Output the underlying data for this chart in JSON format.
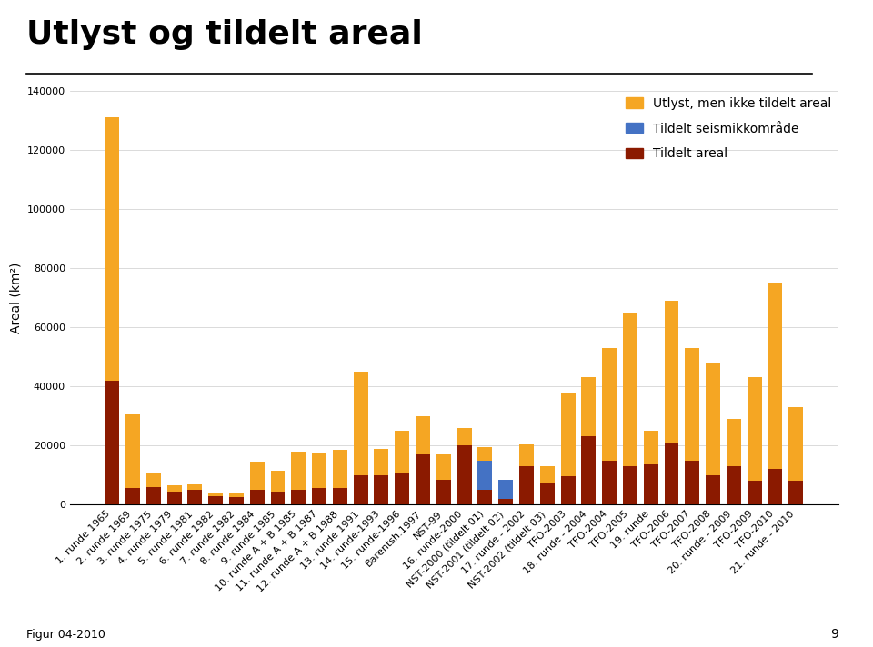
{
  "title": "Utlyst og tildelt areal",
  "ylabel": "Areal (km²)",
  "ylim": [
    0,
    140000
  ],
  "yticks": [
    0,
    20000,
    40000,
    60000,
    80000,
    100000,
    120000,
    140000
  ],
  "legend_labels": [
    "Utlyst, men ikke tildelt areal",
    "Tildelt seismikkområde",
    "Tildelt areal"
  ],
  "legend_colors": [
    "#F5A623",
    "#4472C4",
    "#8B1A00"
  ],
  "figtext": "Figur 04-2010",
  "categories": [
    "1. runde 1965",
    "2. runde 1969",
    "3. runde 1975",
    "4. runde 1979",
    "5. runde 1981",
    "6. runde 1982",
    "7. runde 1982",
    "8. runde 1984",
    "9. runde 1985",
    "10. runde A + B 1985",
    "11. runde A + B 1987",
    "12. runde A + B 1988",
    "13. runde 1991",
    "14. runde-1993",
    "15. runde-1996",
    "Barentsh.1997",
    "NST-99",
    "16. runde-2000",
    "NST-2000 (tildelt 01)",
    "NST-2001 (tildelt 02)",
    "17. runde - 2002",
    "NST-2002 (tildelt 03)",
    "TFO-2003",
    "18. runde - 2004",
    "TFO-2004",
    "TFO-2005",
    "19. runde",
    "TFO-2006",
    "TFO-2007",
    "TFO-2008",
    "20. runde - 2009",
    "TFO-2009",
    "TFO-2010",
    "21. runde - 2010"
  ],
  "utlyst": [
    89000,
    25000,
    5000,
    2000,
    2000,
    1000,
    1500,
    9500,
    7000,
    13000,
    12000,
    13000,
    35000,
    9000,
    14000,
    13000,
    8500,
    6000,
    4500,
    0,
    7500,
    5500,
    28000,
    20000,
    38000,
    52000,
    11500,
    48000,
    38000,
    38000,
    16000,
    35000,
    63000,
    25000
  ],
  "seismikk": [
    0,
    0,
    0,
    0,
    0,
    0,
    0,
    0,
    0,
    0,
    0,
    0,
    0,
    0,
    0,
    0,
    0,
    0,
    10000,
    6500,
    0,
    0,
    0,
    0,
    0,
    0,
    0,
    0,
    0,
    0,
    0,
    0,
    0,
    0
  ],
  "tildelt": [
    42000,
    5500,
    6000,
    4500,
    5000,
    3000,
    2500,
    5000,
    4500,
    5000,
    5500,
    5500,
    10000,
    10000,
    11000,
    17000,
    8500,
    20000,
    5000,
    2000,
    13000,
    7500,
    9500,
    23000,
    15000,
    13000,
    13500,
    21000,
    15000,
    10000,
    13000,
    8000,
    12000,
    8000
  ],
  "color_utlyst": "#F5A623",
  "color_seismikk": "#4472C4",
  "color_tildelt": "#8B1A00",
  "background_color": "#FFFFFF",
  "title_fontsize": 26,
  "axis_fontsize": 10,
  "tick_fontsize": 8,
  "legend_fontsize": 10,
  "page_number": "9"
}
